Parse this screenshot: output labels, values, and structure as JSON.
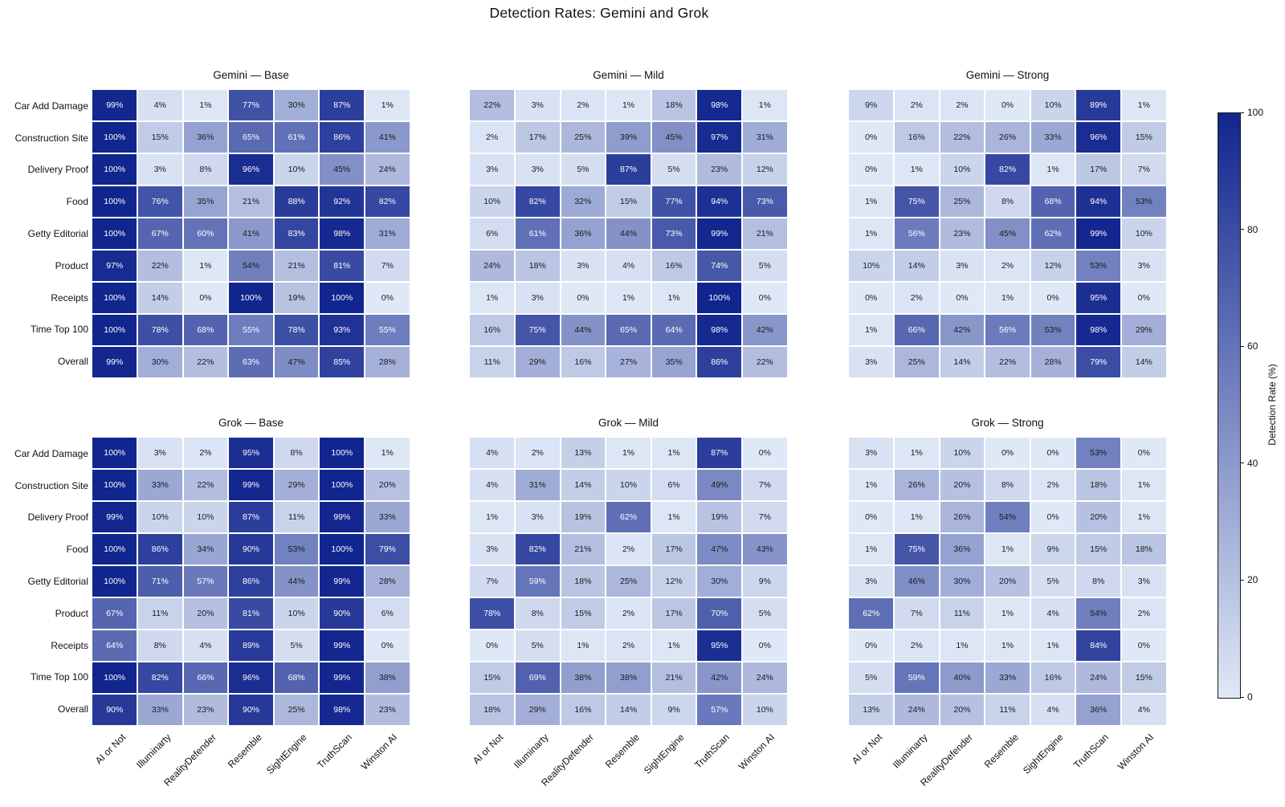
{
  "title": "Detection Rates: Gemini and Grok",
  "chart_data": {
    "type": "heatmap",
    "unit": "%",
    "rows": [
      "Car Add Damage",
      "Construction Site",
      "Delivery Proof",
      "Food",
      "Getty Editorial",
      "Product",
      "Receipts",
      "Time Top 100",
      "Overall"
    ],
    "columns": [
      "AI or Not",
      "Illuminarty",
      "RealityDefender",
      "Resemble",
      "SightEngine",
      "TruthScan",
      "Winston AI"
    ],
    "colorbar": {
      "label": "Detection Rate (%)",
      "ticks": [
        0,
        20,
        40,
        60,
        80,
        100
      ],
      "min": 0,
      "max": 100
    },
    "colors": {
      "low": "#dfe8f6",
      "high": "#11258e",
      "text_dark": "#1a1a1a",
      "text_light": "#ffffff"
    },
    "subplots": [
      {
        "title": "Gemini — Base",
        "values": [
          [
            99,
            4,
            1,
            77,
            30,
            87,
            1
          ],
          [
            100,
            15,
            36,
            65,
            61,
            86,
            41
          ],
          [
            100,
            3,
            8,
            96,
            10,
            45,
            24
          ],
          [
            100,
            76,
            35,
            21,
            88,
            92,
            82
          ],
          [
            100,
            67,
            60,
            41,
            83,
            98,
            31
          ],
          [
            97,
            22,
            1,
            54,
            21,
            81,
            7
          ],
          [
            100,
            14,
            0,
            100,
            19,
            100,
            0
          ],
          [
            100,
            78,
            68,
            55,
            78,
            93,
            55
          ],
          [
            99,
            30,
            22,
            63,
            47,
            85,
            28
          ]
        ]
      },
      {
        "title": "Gemini — Mild",
        "values": [
          [
            22,
            3,
            2,
            1,
            18,
            98,
            1
          ],
          [
            2,
            17,
            25,
            39,
            45,
            97,
            31
          ],
          [
            3,
            3,
            5,
            87,
            5,
            23,
            12
          ],
          [
            10,
            82,
            32,
            15,
            77,
            94,
            73
          ],
          [
            6,
            61,
            36,
            44,
            73,
            99,
            21
          ],
          [
            24,
            18,
            3,
            4,
            16,
            74,
            5
          ],
          [
            1,
            3,
            0,
            1,
            1,
            100,
            0
          ],
          [
            16,
            75,
            44,
            65,
            64,
            98,
            42
          ],
          [
            11,
            29,
            16,
            27,
            35,
            86,
            22
          ]
        ]
      },
      {
        "title": "Gemini — Strong",
        "values": [
          [
            9,
            2,
            2,
            0,
            10,
            89,
            1
          ],
          [
            0,
            16,
            22,
            26,
            33,
            96,
            15
          ],
          [
            0,
            1,
            10,
            82,
            1,
            17,
            7
          ],
          [
            1,
            75,
            25,
            8,
            68,
            94,
            53
          ],
          [
            1,
            56,
            23,
            45,
            62,
            99,
            10
          ],
          [
            10,
            14,
            3,
            2,
            12,
            53,
            3
          ],
          [
            0,
            2,
            0,
            1,
            0,
            95,
            0
          ],
          [
            1,
            66,
            42,
            56,
            53,
            98,
            29
          ],
          [
            3,
            25,
            14,
            22,
            28,
            79,
            14
          ]
        ]
      },
      {
        "title": "Grok — Base",
        "values": [
          [
            100,
            3,
            2,
            95,
            8,
            100,
            1
          ],
          [
            100,
            33,
            22,
            99,
            29,
            100,
            20
          ],
          [
            99,
            10,
            10,
            87,
            11,
            99,
            33
          ],
          [
            100,
            86,
            34,
            90,
            53,
            100,
            79
          ],
          [
            100,
            71,
            57,
            86,
            44,
            99,
            28
          ],
          [
            67,
            11,
            20,
            81,
            10,
            90,
            6
          ],
          [
            64,
            8,
            4,
            89,
            5,
            99,
            0
          ],
          [
            100,
            82,
            66,
            96,
            68,
            99,
            38
          ],
          [
            90,
            33,
            23,
            90,
            25,
            98,
            23
          ]
        ]
      },
      {
        "title": "Grok — Mild",
        "values": [
          [
            4,
            2,
            13,
            1,
            1,
            87,
            0
          ],
          [
            4,
            31,
            14,
            10,
            6,
            49,
            7
          ],
          [
            1,
            3,
            19,
            62,
            1,
            19,
            7
          ],
          [
            3,
            82,
            21,
            2,
            17,
            47,
            43
          ],
          [
            7,
            59,
            18,
            25,
            12,
            30,
            9
          ],
          [
            78,
            8,
            15,
            2,
            17,
            70,
            5
          ],
          [
            0,
            5,
            1,
            2,
            1,
            95,
            0
          ],
          [
            15,
            69,
            38,
            38,
            21,
            42,
            24
          ],
          [
            18,
            29,
            16,
            14,
            9,
            57,
            10
          ]
        ]
      },
      {
        "title": "Grok — Strong",
        "values": [
          [
            3,
            1,
            10,
            0,
            0,
            53,
            0
          ],
          [
            1,
            26,
            20,
            8,
            2,
            18,
            1
          ],
          [
            0,
            1,
            26,
            54,
            0,
            20,
            1
          ],
          [
            1,
            75,
            36,
            1,
            9,
            15,
            18
          ],
          [
            3,
            46,
            30,
            20,
            5,
            8,
            3
          ],
          [
            62,
            7,
            11,
            1,
            4,
            54,
            2
          ],
          [
            0,
            2,
            1,
            1,
            1,
            84,
            0
          ],
          [
            5,
            59,
            40,
            33,
            16,
            24,
            15
          ],
          [
            13,
            24,
            20,
            11,
            4,
            36,
            4
          ]
        ]
      }
    ]
  }
}
